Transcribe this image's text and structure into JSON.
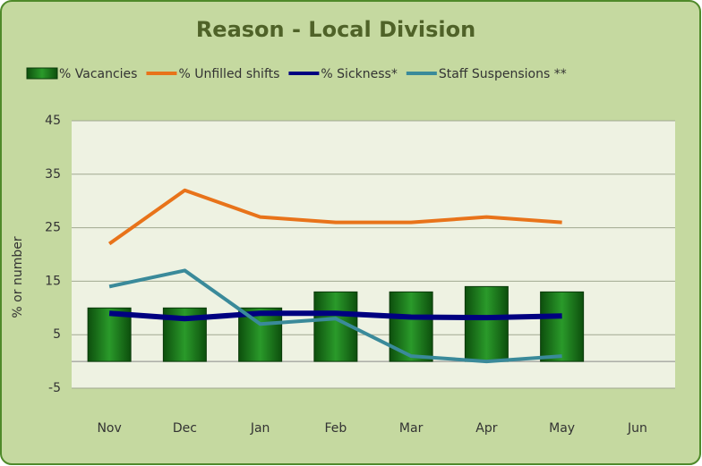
{
  "chart_data": {
    "type": "combo",
    "title": "Reason - Local Division",
    "y_label": "% or number",
    "categories": [
      "Nov",
      "Dec",
      "Jan",
      "Feb",
      "Mar",
      "Apr",
      "May",
      "Jun"
    ],
    "series": [
      {
        "name": "% Vacancies",
        "type": "bar",
        "color": "#1a7a1a",
        "values": [
          10,
          10,
          10,
          13,
          13,
          14,
          13,
          null
        ]
      },
      {
        "name": "% Unfilled shifts",
        "type": "line",
        "color": "#e8731a",
        "values": [
          22,
          32,
          27,
          26,
          26,
          27,
          26,
          null
        ]
      },
      {
        "name": "% Sickness*",
        "type": "line",
        "color": "#000080",
        "values": [
          9,
          8,
          9,
          9,
          8.3,
          8.2,
          8.5,
          null
        ]
      },
      {
        "name": "Staff Suspensions **",
        "type": "line",
        "color": "#3a8a9a",
        "values": [
          14,
          17,
          7,
          8,
          1,
          0,
          1,
          null
        ]
      }
    ],
    "ylim": [
      -5,
      45
    ],
    "yticks": [
      -5,
      5,
      15,
      25,
      35,
      45
    ],
    "grid": true,
    "legend": "top"
  }
}
